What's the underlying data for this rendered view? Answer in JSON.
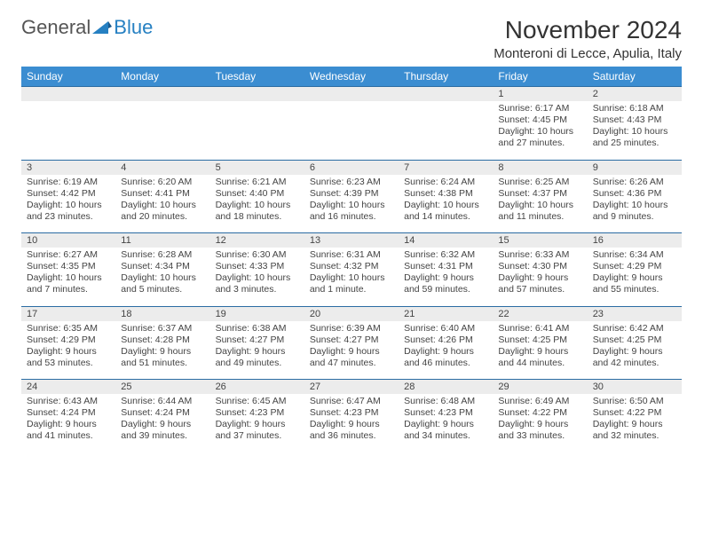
{
  "brand": {
    "part1": "General",
    "part2": "Blue"
  },
  "title": "November 2024",
  "location": "Monteroni di Lecce, Apulia, Italy",
  "colors": {
    "header_bg": "#3b8dd1",
    "header_text": "#ffffff",
    "rule": "#2b6ca3",
    "daynum_bg": "#ececec",
    "text": "#444444",
    "brand_accent": "#2680c2"
  },
  "daysOfWeek": [
    "Sunday",
    "Monday",
    "Tuesday",
    "Wednesday",
    "Thursday",
    "Friday",
    "Saturday"
  ],
  "weeks": [
    [
      null,
      null,
      null,
      null,
      null,
      {
        "n": "1",
        "sunrise": "6:17 AM",
        "sunset": "4:45 PM",
        "daylight": "10 hours and 27 minutes."
      },
      {
        "n": "2",
        "sunrise": "6:18 AM",
        "sunset": "4:43 PM",
        "daylight": "10 hours and 25 minutes."
      }
    ],
    [
      {
        "n": "3",
        "sunrise": "6:19 AM",
        "sunset": "4:42 PM",
        "daylight": "10 hours and 23 minutes."
      },
      {
        "n": "4",
        "sunrise": "6:20 AM",
        "sunset": "4:41 PM",
        "daylight": "10 hours and 20 minutes."
      },
      {
        "n": "5",
        "sunrise": "6:21 AM",
        "sunset": "4:40 PM",
        "daylight": "10 hours and 18 minutes."
      },
      {
        "n": "6",
        "sunrise": "6:23 AM",
        "sunset": "4:39 PM",
        "daylight": "10 hours and 16 minutes."
      },
      {
        "n": "7",
        "sunrise": "6:24 AM",
        "sunset": "4:38 PM",
        "daylight": "10 hours and 14 minutes."
      },
      {
        "n": "8",
        "sunrise": "6:25 AM",
        "sunset": "4:37 PM",
        "daylight": "10 hours and 11 minutes."
      },
      {
        "n": "9",
        "sunrise": "6:26 AM",
        "sunset": "4:36 PM",
        "daylight": "10 hours and 9 minutes."
      }
    ],
    [
      {
        "n": "10",
        "sunrise": "6:27 AM",
        "sunset": "4:35 PM",
        "daylight": "10 hours and 7 minutes."
      },
      {
        "n": "11",
        "sunrise": "6:28 AM",
        "sunset": "4:34 PM",
        "daylight": "10 hours and 5 minutes."
      },
      {
        "n": "12",
        "sunrise": "6:30 AM",
        "sunset": "4:33 PM",
        "daylight": "10 hours and 3 minutes."
      },
      {
        "n": "13",
        "sunrise": "6:31 AM",
        "sunset": "4:32 PM",
        "daylight": "10 hours and 1 minute."
      },
      {
        "n": "14",
        "sunrise": "6:32 AM",
        "sunset": "4:31 PM",
        "daylight": "9 hours and 59 minutes."
      },
      {
        "n": "15",
        "sunrise": "6:33 AM",
        "sunset": "4:30 PM",
        "daylight": "9 hours and 57 minutes."
      },
      {
        "n": "16",
        "sunrise": "6:34 AM",
        "sunset": "4:29 PM",
        "daylight": "9 hours and 55 minutes."
      }
    ],
    [
      {
        "n": "17",
        "sunrise": "6:35 AM",
        "sunset": "4:29 PM",
        "daylight": "9 hours and 53 minutes."
      },
      {
        "n": "18",
        "sunrise": "6:37 AM",
        "sunset": "4:28 PM",
        "daylight": "9 hours and 51 minutes."
      },
      {
        "n": "19",
        "sunrise": "6:38 AM",
        "sunset": "4:27 PM",
        "daylight": "9 hours and 49 minutes."
      },
      {
        "n": "20",
        "sunrise": "6:39 AM",
        "sunset": "4:27 PM",
        "daylight": "9 hours and 47 minutes."
      },
      {
        "n": "21",
        "sunrise": "6:40 AM",
        "sunset": "4:26 PM",
        "daylight": "9 hours and 46 minutes."
      },
      {
        "n": "22",
        "sunrise": "6:41 AM",
        "sunset": "4:25 PM",
        "daylight": "9 hours and 44 minutes."
      },
      {
        "n": "23",
        "sunrise": "6:42 AM",
        "sunset": "4:25 PM",
        "daylight": "9 hours and 42 minutes."
      }
    ],
    [
      {
        "n": "24",
        "sunrise": "6:43 AM",
        "sunset": "4:24 PM",
        "daylight": "9 hours and 41 minutes."
      },
      {
        "n": "25",
        "sunrise": "6:44 AM",
        "sunset": "4:24 PM",
        "daylight": "9 hours and 39 minutes."
      },
      {
        "n": "26",
        "sunrise": "6:45 AM",
        "sunset": "4:23 PM",
        "daylight": "9 hours and 37 minutes."
      },
      {
        "n": "27",
        "sunrise": "6:47 AM",
        "sunset": "4:23 PM",
        "daylight": "9 hours and 36 minutes."
      },
      {
        "n": "28",
        "sunrise": "6:48 AM",
        "sunset": "4:23 PM",
        "daylight": "9 hours and 34 minutes."
      },
      {
        "n": "29",
        "sunrise": "6:49 AM",
        "sunset": "4:22 PM",
        "daylight": "9 hours and 33 minutes."
      },
      {
        "n": "30",
        "sunrise": "6:50 AM",
        "sunset": "4:22 PM",
        "daylight": "9 hours and 32 minutes."
      }
    ]
  ],
  "labels": {
    "sunrise": "Sunrise:",
    "sunset": "Sunset:",
    "daylight": "Daylight:"
  }
}
